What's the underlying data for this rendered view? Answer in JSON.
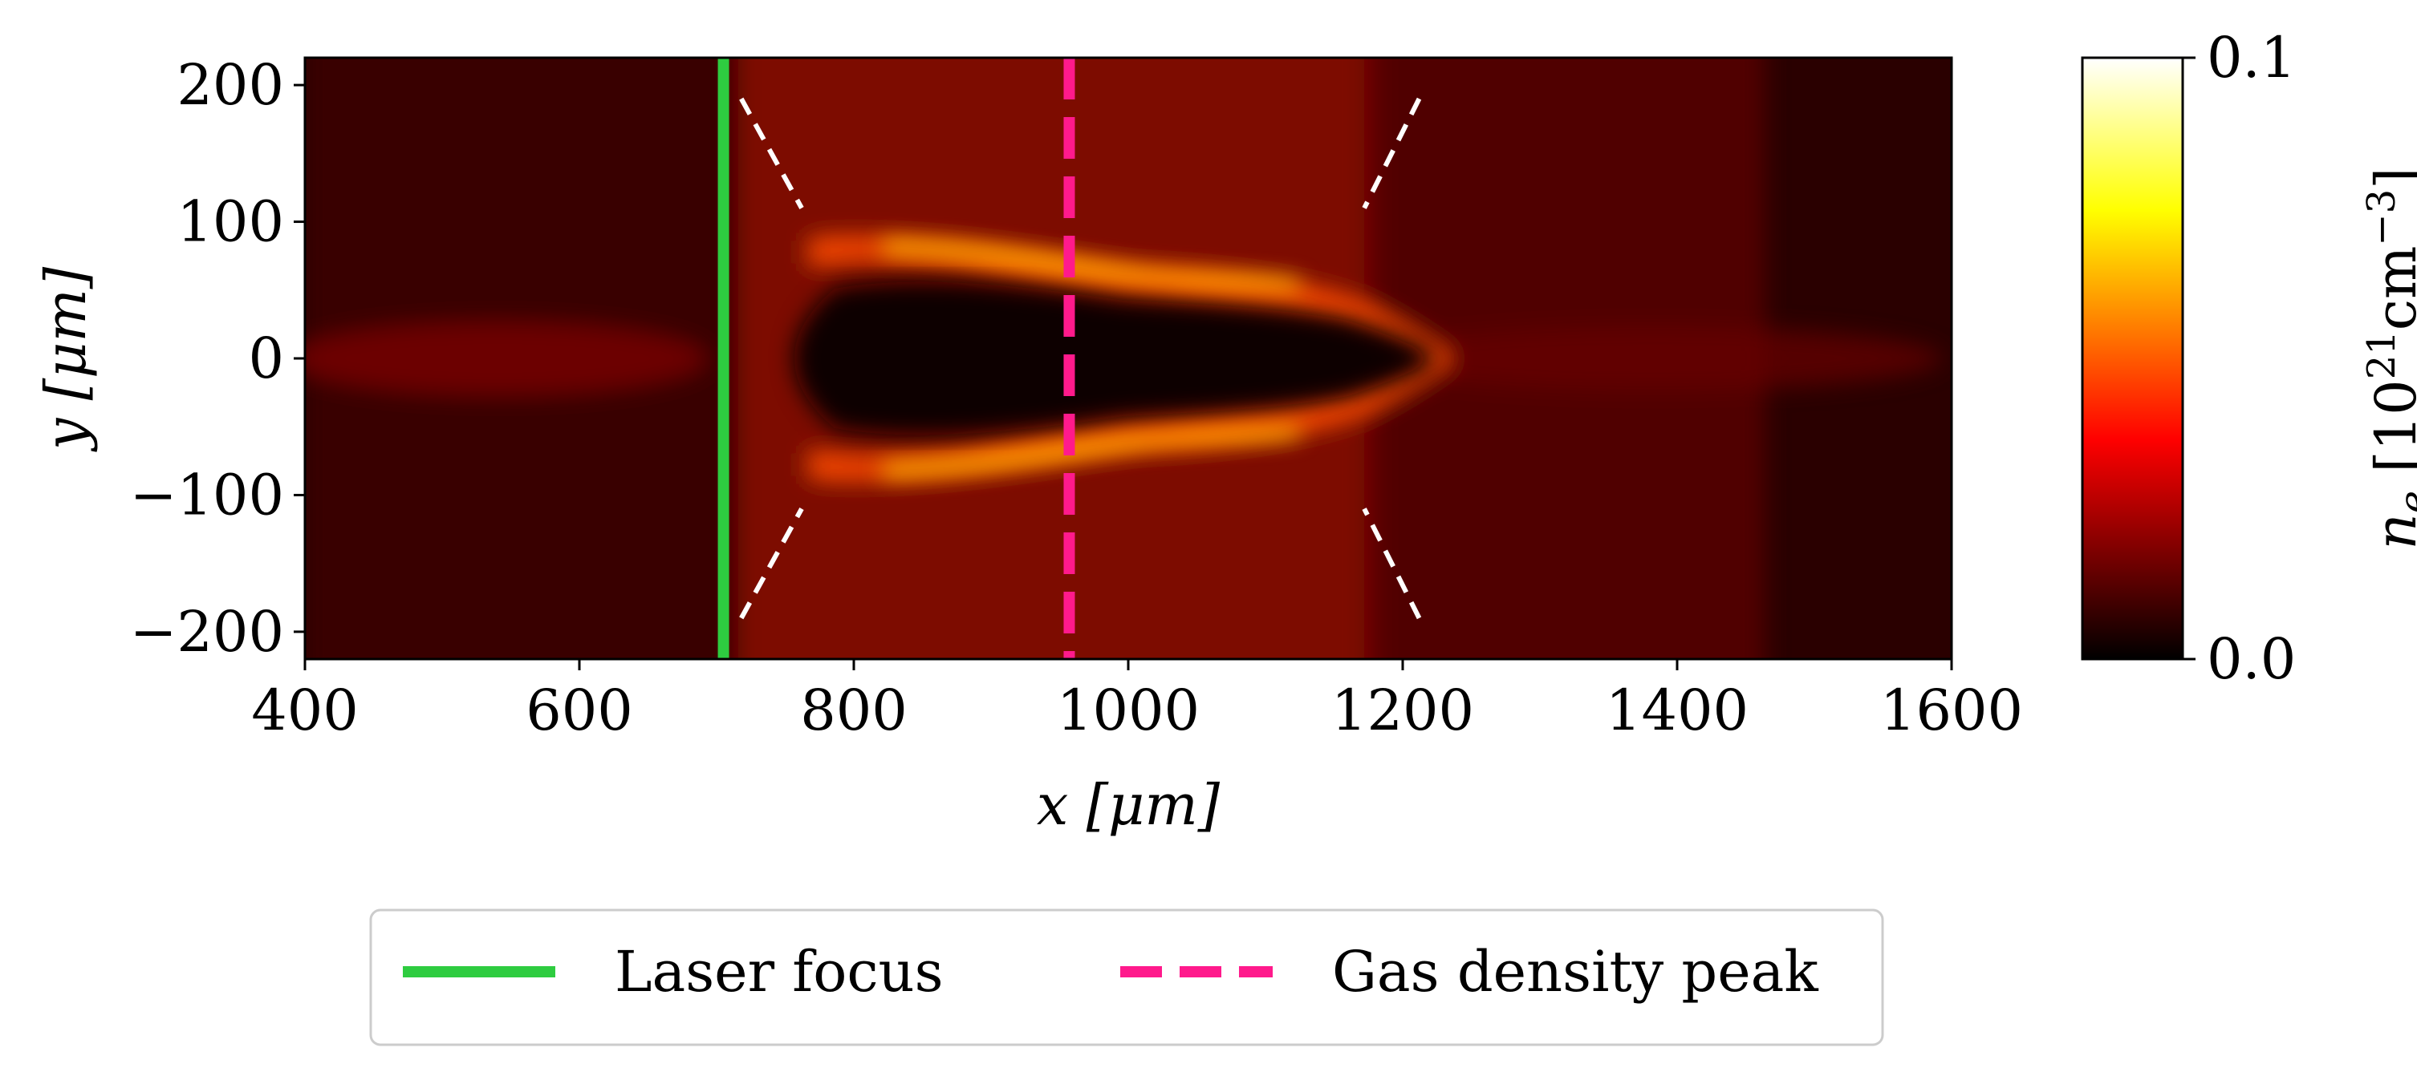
{
  "chart_data": {
    "type": "heatmap",
    "title": "",
    "xlabel": "x [μm]",
    "ylabel": "y [μm]",
    "xlim": [
      400,
      1600
    ],
    "ylim": [
      -220,
      220
    ],
    "xticks": [
      400,
      600,
      800,
      1000,
      1200,
      1400,
      1600
    ],
    "yticks": [
      -200,
      -100,
      0,
      100,
      200
    ],
    "ytick_labels": [
      "−200",
      "−100",
      "0",
      "100",
      "200"
    ],
    "colorbar": {
      "label_var": "n",
      "label_sub": "e",
      "label_open": " [10",
      "label_exp": "21",
      "label_unit": "cm",
      "label_unit_exp": "−3",
      "label_close": "]",
      "min": 0.0,
      "max": 0.1,
      "tick_labels": [
        "0.0",
        "0.1"
      ],
      "colormap": "hot"
    },
    "lines": [
      {
        "name": "Laser focus",
        "x": 705,
        "style": "solid",
        "color": "#2ecc40"
      },
      {
        "name": "Gas density peak",
        "x": 957,
        "style": "dashed",
        "color": "#ff1a8c"
      }
    ],
    "cone_markers": [
      {
        "x1": 718,
        "y1": 190,
        "x2": 762,
        "y2": 110
      },
      {
        "x1": 718,
        "y1": -190,
        "x2": 762,
        "y2": -110
      },
      {
        "x1": 1212,
        "y1": 190,
        "x2": 1172,
        "y2": 110
      },
      {
        "x1": 1212,
        "y1": -190,
        "x2": 1172,
        "y2": -110
      }
    ],
    "legend": {
      "placement": "bottom-center",
      "columns": 2
    }
  }
}
